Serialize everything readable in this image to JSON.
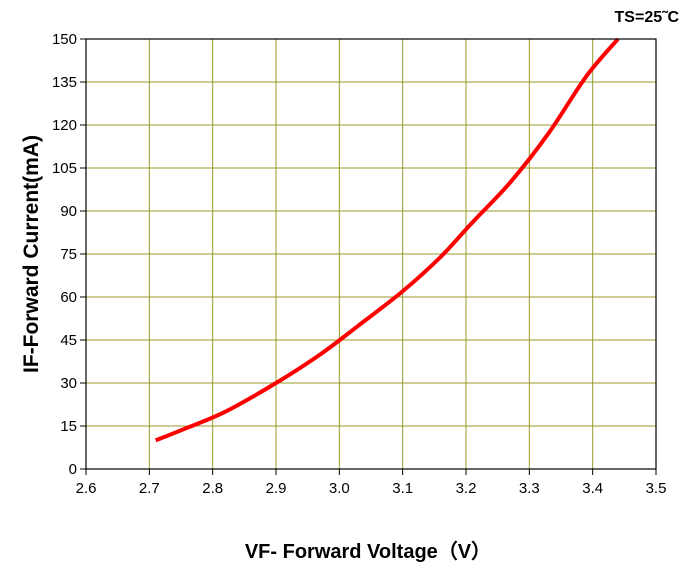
{
  "chart_data": {
    "type": "line",
    "title": "",
    "annotation": "TS=25˜C",
    "xlabel": "VF- Forward Voltage（V）",
    "ylabel": "IF-Forward Current(mA)",
    "xlim": [
      2.6,
      3.5
    ],
    "ylim": [
      0,
      150
    ],
    "x_ticks": [
      "2.6",
      "2.7",
      "2.8",
      "2.9",
      "3.0",
      "3.1",
      "3.2",
      "3.3",
      "3.4",
      "3.5"
    ],
    "y_ticks": [
      "0",
      "15",
      "30",
      "45",
      "60",
      "75",
      "90",
      "105",
      "120",
      "135",
      "150"
    ],
    "grid": true,
    "colors": {
      "series": "#ff0000",
      "grid": "#9a9a2a",
      "axis": "#000000"
    },
    "series": [
      {
        "name": "",
        "x": [
          2.71,
          2.75,
          2.82,
          2.9,
          2.97,
          3.03,
          3.1,
          3.16,
          3.21,
          3.27,
          3.33,
          3.39,
          3.44
        ],
        "y": [
          10,
          13.5,
          20,
          30,
          40,
          50,
          62,
          74,
          86,
          100,
          117,
          137,
          150
        ]
      }
    ]
  }
}
